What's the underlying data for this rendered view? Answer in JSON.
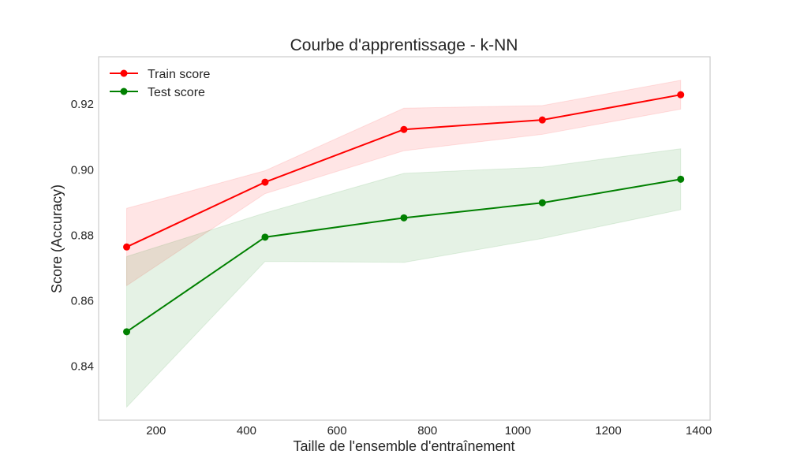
{
  "chart_data": {
    "type": "line",
    "title": "Courbe d'apprentissage - k-NN",
    "xlabel": "Taille de l'ensemble d'entraînement",
    "ylabel": "Score (Accuracy)",
    "xlim": [
      73,
      1425
    ],
    "ylim": [
      0.8235,
      0.9345
    ],
    "xticks": [
      200,
      400,
      600,
      800,
      1000,
      1200,
      1400
    ],
    "xtick_labels": [
      "200",
      "400",
      "600",
      "800",
      "1000",
      "1200",
      "1400"
    ],
    "yticks": [
      0.84,
      0.86,
      0.88,
      0.9,
      0.92
    ],
    "ytick_labels": [
      "0.84",
      "0.86",
      "0.88",
      "0.90",
      "0.92"
    ],
    "grid": false,
    "legend_position": "top-left",
    "x": [
      135,
      441,
      748,
      1054,
      1360
    ],
    "series": [
      {
        "name": "Train score",
        "color": "#ff0000",
        "values": [
          0.8764,
          0.8962,
          0.9123,
          0.9152,
          0.9229
        ],
        "band_upper": [
          0.8882,
          0.8997,
          0.9188,
          0.9196,
          0.9273
        ],
        "band_lower": [
          0.8646,
          0.8927,
          0.9058,
          0.9108,
          0.9185
        ],
        "band_color": "#ff0000",
        "band_opacity": 0.1
      },
      {
        "name": "Test score",
        "color": "#008000",
        "values": [
          0.8505,
          0.8794,
          0.8853,
          0.8899,
          0.8971
        ],
        "band_upper": [
          0.8735,
          0.8868,
          0.8989,
          0.9008,
          0.9064
        ],
        "band_lower": [
          0.8275,
          0.872,
          0.8717,
          0.879,
          0.8878
        ],
        "band_color": "#008000",
        "band_opacity": 0.1
      }
    ]
  }
}
